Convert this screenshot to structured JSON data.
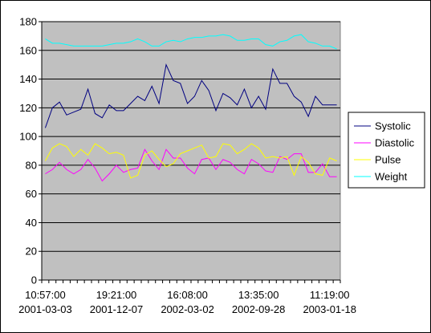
{
  "chart_data": {
    "type": "line",
    "title": "",
    "xlabel": "",
    "ylabel": "",
    "ylim": [
      0,
      180
    ],
    "y_ticks": [
      0,
      20,
      40,
      60,
      80,
      100,
      120,
      140,
      160,
      180
    ],
    "grid": "horizontal",
    "plot_background": "#c0c0c0",
    "legend_position": "right",
    "x_tick_labels": [
      {
        "index": 0,
        "time": "10:57:00",
        "date": "2001-03-03"
      },
      {
        "index": 10,
        "time": "19:21:00",
        "date": "2001-12-07"
      },
      {
        "index": 20,
        "time": "16:08:00",
        "date": "2002-03-02"
      },
      {
        "index": 30,
        "time": "13:35:00",
        "date": "2002-09-28"
      },
      {
        "index": 40,
        "time": "11:19:00",
        "date": "2003-01-18"
      }
    ],
    "series": [
      {
        "name": "Systolic",
        "color": "#000080",
        "values": [
          106,
          120,
          124,
          115,
          117,
          119,
          133,
          116,
          113,
          122,
          118,
          118,
          123,
          128,
          125,
          135,
          123,
          150,
          139,
          137,
          123,
          128,
          139,
          132,
          118,
          130,
          127,
          122,
          133,
          120,
          128,
          119,
          147,
          137,
          137,
          128,
          124,
          114,
          128,
          122,
          122,
          122
        ]
      },
      {
        "name": "Diastolic",
        "color": "#ff00ff",
        "values": [
          74,
          77,
          82,
          77,
          74,
          77,
          84,
          78,
          69,
          74,
          80,
          75,
          77,
          78,
          91,
          83,
          77,
          91,
          85,
          85,
          78,
          74,
          84,
          85,
          77,
          84,
          82,
          77,
          74,
          84,
          81,
          76,
          75,
          86,
          84,
          88,
          88,
          75,
          75,
          81,
          72,
          72
        ]
      },
      {
        "name": "Pulse",
        "color": "#ffff00",
        "values": [
          83,
          92,
          95,
          93,
          86,
          91,
          87,
          95,
          92,
          88,
          89,
          87,
          71,
          73,
          87,
          90,
          84,
          79,
          81,
          88,
          90,
          92,
          94,
          85,
          86,
          95,
          94,
          88,
          91,
          95,
          92,
          85,
          86,
          85,
          86,
          73,
          86,
          82,
          74,
          73,
          85,
          83
        ]
      },
      {
        "name": "Weight",
        "color": "#00ffff",
        "values": [
          168,
          165,
          165,
          164,
          163,
          163,
          163,
          163,
          163,
          164,
          165,
          165,
          166,
          168,
          166,
          163,
          163,
          166,
          167,
          166,
          168,
          169,
          169,
          170,
          170,
          171,
          170,
          167,
          167,
          168,
          168,
          164,
          163,
          166,
          167,
          170,
          171,
          166,
          165,
          163,
          163,
          161
        ]
      }
    ]
  }
}
